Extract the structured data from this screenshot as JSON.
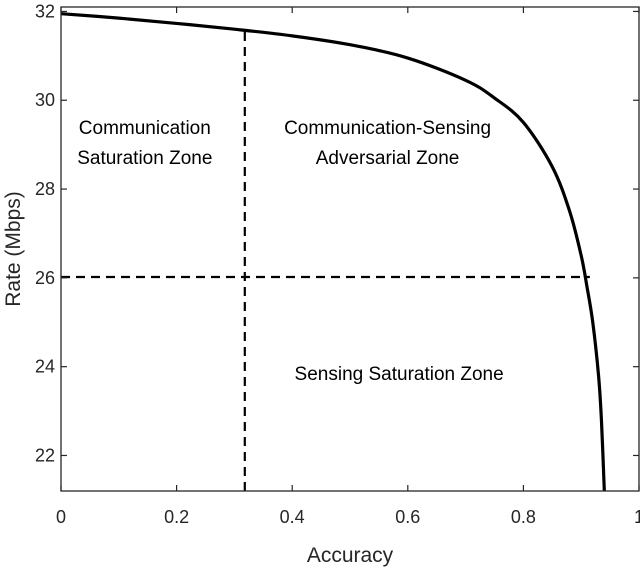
{
  "chart_data": {
    "type": "line",
    "title": "",
    "xlabel": "Accuracy",
    "ylabel": "Rate (Mbps)",
    "xlim": [
      0,
      1
    ],
    "ylim": [
      21.2,
      32.1
    ],
    "xticks": [
      0,
      0.2,
      0.4,
      0.6,
      0.8,
      1
    ],
    "xtick_labels": [
      "0",
      "0.2",
      "0.4",
      "0.6",
      "0.8",
      "1"
    ],
    "yticks": [
      22,
      24,
      26,
      28,
      30,
      32
    ],
    "ytick_labels": [
      "22",
      "24",
      "26",
      "28",
      "30",
      "32"
    ],
    "grid": false,
    "legend": "none",
    "series": [
      {
        "color": "#000000",
        "style": "solid",
        "x": [
          0,
          0.1,
          0.2,
          0.3,
          0.4,
          0.5,
          0.6,
          0.7,
          0.75,
          0.8,
          0.85,
          0.88,
          0.9,
          0.91,
          0.92,
          0.93,
          0.935,
          0.94
        ],
        "y": [
          31.95,
          31.85,
          31.73,
          31.6,
          31.45,
          31.25,
          30.95,
          30.45,
          30.05,
          29.5,
          28.5,
          27.5,
          26.5,
          25.8,
          25.0,
          23.8,
          22.8,
          21.2
        ]
      }
    ],
    "reference_lines": [
      {
        "orientation": "vertical",
        "x": 0.318,
        "y_range": [
          21.2,
          31.55
        ],
        "style": "dashed",
        "color": "#000000"
      },
      {
        "orientation": "horizontal",
        "y": 26.02,
        "x_range": [
          0,
          0.915
        ],
        "style": "dashed",
        "color": "#000000"
      }
    ],
    "annotations": [
      {
        "lines": [
          "Communication",
          "Saturation Zone"
        ],
        "x": 0.145,
        "y": 28.9
      },
      {
        "lines": [
          "Communication-Sensing",
          "Adversarial Zone"
        ],
        "x": 0.565,
        "y": 28.9
      },
      {
        "lines": [
          "Sensing Saturation Zone"
        ],
        "x": 0.585,
        "y": 23.7
      }
    ]
  }
}
